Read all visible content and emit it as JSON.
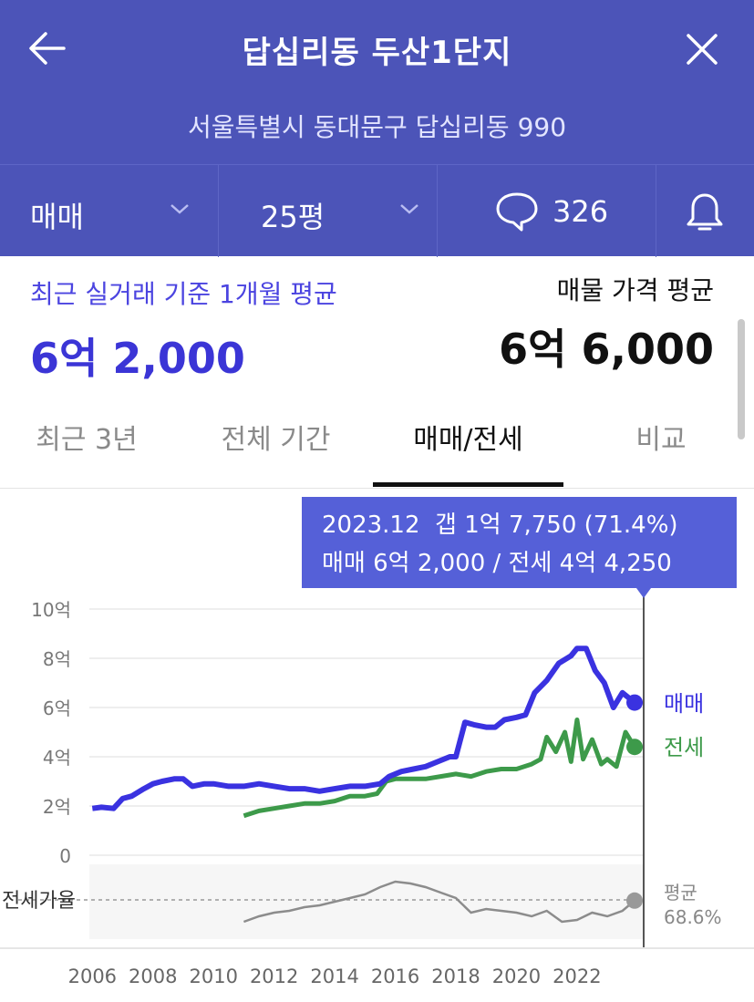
{
  "header": {
    "title": "답십리동 두산1단지",
    "address": "서울특별시 동대문구 답십리동 990",
    "back_icon": "arrow-left-icon",
    "close_icon": "close-icon"
  },
  "filters": {
    "deal_type": "매매",
    "size": "25평",
    "comment_count": "326",
    "comment_icon": "chat-bubble-icon",
    "alarm_icon": "bell-icon"
  },
  "prices": {
    "recent_label": "최근 실거래 기준 1개월 평균",
    "recent_value": "6억 2,000",
    "listing_label": "매물 가격 평균",
    "listing_value": "6억 6,000"
  },
  "tabs": [
    {
      "label": "최근 3년",
      "active": false
    },
    {
      "label": "전체 기간",
      "active": false
    },
    {
      "label": "매매/전세",
      "active": true
    },
    {
      "label": "비교",
      "active": false
    }
  ],
  "tooltip": {
    "line1": "2023.12  갭 1억 7,750 (71.4%)",
    "line2": "매매 6억 2,000 / 전세 4억 4,250"
  },
  "chart_data": {
    "type": "line",
    "x_ticks": [
      "2006",
      "2008",
      "2010",
      "2012",
      "2014",
      "2016",
      "2018",
      "2020",
      "2022"
    ],
    "y_ticks": [
      "0",
      "2억",
      "4억",
      "6억",
      "8억",
      "10억"
    ],
    "ylim": [
      0,
      10
    ],
    "xlim": [
      2005.9,
      2024.2
    ],
    "ratio_label": "전세가율",
    "ratio_end_label": "평균",
    "ratio_end_value": "68.6%",
    "colors": {
      "sale": "#3a32e0",
      "jeonse": "#3d9a4a",
      "ratio": "#8c8c8c"
    },
    "series": [
      {
        "name": "매매",
        "x": [
          2006.0,
          2006.3,
          2006.7,
          2007.0,
          2007.3,
          2007.7,
          2008.0,
          2008.3,
          2008.7,
          2009.0,
          2009.3,
          2009.7,
          2010.0,
          2010.5,
          2011.0,
          2011.5,
          2012.0,
          2012.5,
          2013.0,
          2013.5,
          2014.0,
          2014.5,
          2015.0,
          2015.5,
          2015.8,
          2016.2,
          2016.6,
          2017.0,
          2017.4,
          2017.8,
          2018.0,
          2018.3,
          2018.6,
          2019.0,
          2019.3,
          2019.6,
          2020.0,
          2020.3,
          2020.6,
          2021.0,
          2021.4,
          2021.8,
          2022.0,
          2022.3,
          2022.6,
          2022.9,
          2023.2,
          2023.5,
          2023.9
        ],
        "values": [
          1.9,
          1.95,
          1.9,
          2.3,
          2.4,
          2.7,
          2.9,
          3.0,
          3.1,
          3.1,
          2.8,
          2.9,
          2.9,
          2.8,
          2.8,
          2.9,
          2.8,
          2.7,
          2.7,
          2.6,
          2.7,
          2.8,
          2.8,
          2.9,
          3.2,
          3.4,
          3.5,
          3.6,
          3.8,
          4.0,
          4.0,
          5.4,
          5.3,
          5.2,
          5.2,
          5.5,
          5.6,
          5.7,
          6.6,
          7.1,
          7.8,
          8.1,
          8.4,
          8.4,
          7.5,
          7.0,
          6.0,
          6.6,
          6.2
        ],
        "end_label": "매매"
      },
      {
        "name": "전세",
        "x": [
          2011.0,
          2011.5,
          2012.0,
          2012.5,
          2013.0,
          2013.5,
          2014.0,
          2014.5,
          2015.0,
          2015.4,
          2015.7,
          2016.0,
          2016.5,
          2017.0,
          2017.5,
          2018.0,
          2018.5,
          2019.0,
          2019.5,
          2020.0,
          2020.5,
          2020.8,
          2021.0,
          2021.3,
          2021.6,
          2021.8,
          2022.0,
          2022.2,
          2022.5,
          2022.8,
          2023.0,
          2023.3,
          2023.6,
          2023.9
        ],
        "values": [
          1.6,
          1.8,
          1.9,
          2.0,
          2.1,
          2.1,
          2.2,
          2.4,
          2.4,
          2.5,
          3.0,
          3.1,
          3.1,
          3.1,
          3.2,
          3.3,
          3.2,
          3.4,
          3.5,
          3.5,
          3.7,
          3.9,
          4.8,
          4.2,
          5.0,
          3.8,
          5.5,
          3.9,
          4.7,
          3.7,
          3.9,
          3.6,
          5.0,
          4.4
        ],
        "end_label": "전세"
      },
      {
        "name": "전세가율",
        "x": [
          2011.0,
          2011.5,
          2012.0,
          2012.5,
          2013.0,
          2013.5,
          2014.0,
          2014.5,
          2015.0,
          2015.5,
          2016.0,
          2016.5,
          2017.0,
          2017.5,
          2018.0,
          2018.5,
          2019.0,
          2019.5,
          2020.0,
          2020.5,
          2021.0,
          2021.5,
          2022.0,
          2022.5,
          2023.0,
          2023.5,
          2023.9
        ],
        "values": [
          57,
          60,
          62,
          63,
          65,
          66,
          68,
          70,
          72,
          76,
          79,
          78,
          76,
          73,
          70,
          62,
          64,
          63,
          62,
          60,
          63,
          57,
          58,
          62,
          60,
          63,
          68.6
        ]
      }
    ]
  }
}
